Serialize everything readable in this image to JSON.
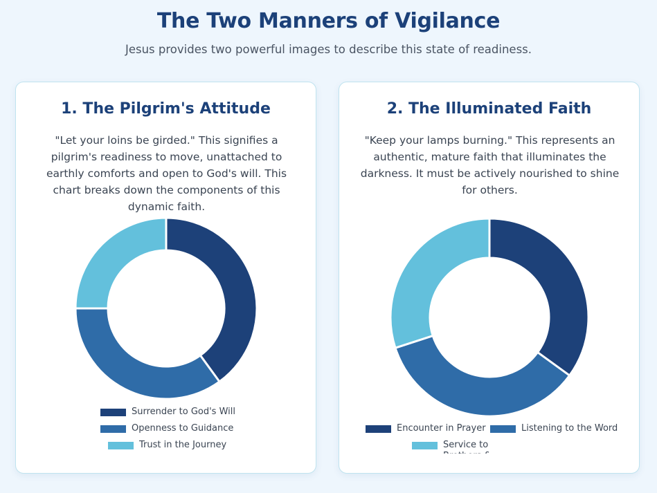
{
  "header": {
    "title": "The Two Manners of Vigilance",
    "subtitle": "Jesus provides two powerful images to describe this state of readiness."
  },
  "cards": [
    {
      "title": "1. The Pilgrim's Attitude",
      "description": "\"Let your loins be girded.\" This signifies a pilgrim's readiness to move, unattached to earthly comforts and open to God's will. This chart breaks down the components of this dynamic faith."
    },
    {
      "title": "2. The Illuminated Faith",
      "description": "\"Keep your lamps burning.\" This represents an authentic, mature faith that illuminates the darkness. It must be actively nourished to shine for others."
    }
  ],
  "colors": {
    "dark_blue": "#1d4179",
    "mid_blue": "#2f6ca8",
    "light_blue": "#63c0dc"
  },
  "chart_data": [
    {
      "type": "pie",
      "hole": true,
      "categories": [
        "Surrender to God's Will",
        "Openness to Guidance",
        "Trust in the Journey"
      ],
      "values": [
        40,
        35,
        25
      ],
      "colors": [
        "#1d4179",
        "#2f6ca8",
        "#63c0dc"
      ],
      "legend": "bottom"
    },
    {
      "type": "pie",
      "hole": true,
      "categories": [
        "Encounter in Prayer",
        "Listening to the Word",
        "Service to Brothers &"
      ],
      "values": [
        35,
        35,
        30
      ],
      "colors": [
        "#1d4179",
        "#2f6ca8",
        "#63c0dc"
      ],
      "legend": "bottom"
    }
  ]
}
